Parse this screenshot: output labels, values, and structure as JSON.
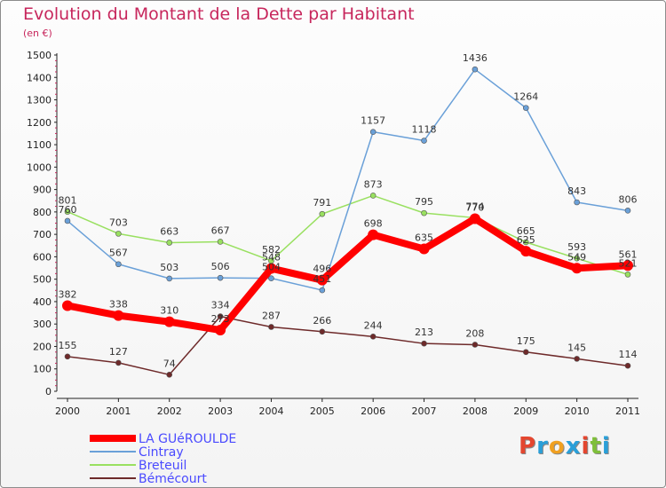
{
  "header": {
    "title": "Evolution du Montant de la Dette par Habitant",
    "unit": "(en €)"
  },
  "logo": {
    "text": "Proxiti",
    "colors": [
      "#e4462f",
      "#2a9fd8",
      "#f0a020",
      "#2a9fd8",
      "#e4462f",
      "#7fbf3a",
      "#2a9fd8"
    ]
  },
  "chart_data": {
    "type": "line",
    "x": [
      "2000",
      "2001",
      "2002",
      "2003",
      "2004",
      "2005",
      "2006",
      "2007",
      "2008",
      "2009",
      "2010",
      "2011"
    ],
    "ylim": [
      0,
      1500
    ],
    "yticks": [
      0,
      100,
      200,
      300,
      400,
      500,
      600,
      700,
      800,
      900,
      1000,
      1100,
      1200,
      1300,
      1400,
      1500
    ],
    "grid": false,
    "legend_position": "bottom-left",
    "series": [
      {
        "name": "Bémécourt",
        "color": "#6e2a2a",
        "values": [
          155,
          127,
          74,
          334,
          287,
          266,
          244,
          213,
          208,
          175,
          145,
          114
        ]
      },
      {
        "name": "Breteuil",
        "color": "#99e060",
        "values": [
          801,
          703,
          663,
          667,
          582,
          791,
          873,
          795,
          774,
          665,
          593,
          521
        ]
      },
      {
        "name": "Cintray",
        "color": "#6aa0d8",
        "values": [
          760,
          567,
          503,
          506,
          504,
          451,
          1157,
          1118,
          1436,
          1264,
          843,
          806
        ]
      },
      {
        "name": "LA GUéROULDE",
        "color": "#ff0000",
        "values": [
          382,
          338,
          310,
          273,
          548,
          496,
          698,
          635,
          770,
          625,
          549,
          561
        ]
      }
    ],
    "data_labels": {
      "Bémécourt": [
        "155",
        "127",
        "74",
        "334",
        "287",
        "266",
        "244",
        "213",
        "208",
        "175",
        "145",
        "114"
      ],
      "Breteuil": [
        "801",
        "703",
        "663",
        "667",
        "582",
        "791",
        "873",
        "795",
        "774",
        "665",
        "593",
        "521"
      ],
      "Cintray": [
        "760",
        "567",
        "503",
        "506",
        "504",
        "451",
        "1157",
        "1118",
        "1436",
        "1264",
        "843",
        "806"
      ],
      "LA GUéROULDE": [
        "382",
        "338",
        "310",
        "273",
        "548",
        "496",
        "698",
        "635",
        "770",
        "625",
        "549",
        "561"
      ]
    },
    "legend_order": [
      "LA GUéROULDE",
      "Cintray",
      "Breteuil",
      "Bémécourt"
    ]
  }
}
